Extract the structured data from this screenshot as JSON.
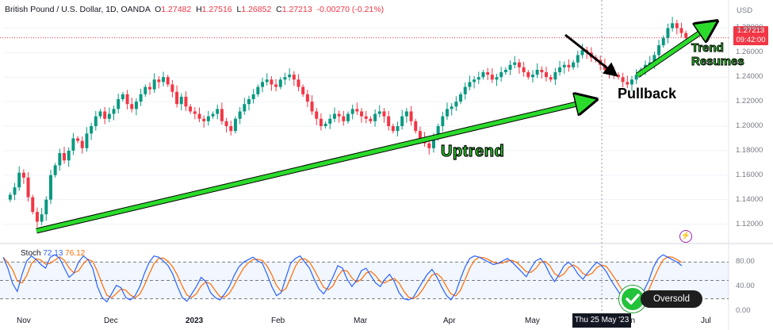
{
  "header": {
    "symbol": "British Pound / U.S. Dollar, 1D, OANDA",
    "open_label": "O",
    "open": "1.27482",
    "high_label": "H",
    "high": "1.27516",
    "low_label": "L",
    "low": "1.26852",
    "close_label": "C",
    "close": "1.27213",
    "change": "-0.00270 (-0.21%)"
  },
  "price_axis": {
    "currency": "USD",
    "last_price": "1.27213",
    "countdown": "09:42:00",
    "ticks": [
      "1.28000",
      "1.26000",
      "1.24000",
      "1.22000",
      "1.20000",
      "1.18000",
      "1.16000",
      "1.14000",
      "1.12000"
    ]
  },
  "stoch": {
    "label": "Stoch",
    "k_value": "72.13",
    "d_value": "76.12",
    "ticks": [
      "80.00",
      "40.00",
      "0.00"
    ]
  },
  "time_axis": {
    "ticks": [
      {
        "label": "Nov",
        "bold": false
      },
      {
        "label": "Dec",
        "bold": false
      },
      {
        "label": "2023",
        "bold": true
      },
      {
        "label": "Feb",
        "bold": false
      },
      {
        "label": "Mar",
        "bold": false
      },
      {
        "label": "Apr",
        "bold": false
      },
      {
        "label": "May",
        "bold": false
      },
      {
        "label": "Jun",
        "bold": false
      },
      {
        "label": "Jul",
        "bold": false
      }
    ],
    "crosshair_date": "Thu 25 May '23"
  },
  "annotations": {
    "uptrend": "Uptrend",
    "pullback": "Pullback",
    "trend_line1": "Trend",
    "trend_line2": "Resumes",
    "oversold": "Oversold"
  },
  "colors": {
    "up": "#089981",
    "down": "#f23645",
    "arrow_green": "#2bdb2b",
    "stoch_k": "#2962ff",
    "stoch_d": "#ff6d00"
  },
  "chart_data": {
    "type": "candlestick",
    "title": "British Pound / U.S. Dollar, 1D, OANDA",
    "ylim": [
      1.11,
      1.29
    ],
    "closes": [
      1.144,
      1.15,
      1.162,
      1.158,
      1.142,
      1.13,
      1.122,
      1.128,
      1.14,
      1.16,
      1.168,
      1.178,
      1.172,
      1.18,
      1.19,
      1.188,
      1.182,
      1.194,
      1.2,
      1.208,
      1.212,
      1.206,
      1.21,
      1.214,
      1.222,
      1.226,
      1.218,
      1.214,
      1.22,
      1.226,
      1.232,
      1.23,
      1.238,
      1.236,
      1.24,
      1.234,
      1.228,
      1.218,
      1.224,
      1.216,
      1.212,
      1.21,
      1.206,
      1.204,
      1.208,
      1.21,
      1.214,
      1.204,
      1.2,
      1.196,
      1.206,
      1.212,
      1.218,
      1.222,
      1.226,
      1.232,
      1.236,
      1.238,
      1.234,
      1.232,
      1.238,
      1.24,
      1.242,
      1.238,
      1.232,
      1.226,
      1.22,
      1.212,
      1.206,
      1.2,
      1.202,
      1.206,
      1.21,
      1.208,
      1.204,
      1.21,
      1.214,
      1.212,
      1.208,
      1.206,
      1.204,
      1.21,
      1.212,
      1.208,
      1.2,
      1.196,
      1.2,
      1.208,
      1.212,
      1.204,
      1.196,
      1.19,
      1.186,
      1.182,
      1.19,
      1.2,
      1.208,
      1.214,
      1.216,
      1.22,
      1.226,
      1.232,
      1.236,
      1.238,
      1.24,
      1.244,
      1.242,
      1.238,
      1.24,
      1.244,
      1.246,
      1.25,
      1.252,
      1.248,
      1.244,
      1.24,
      1.242,
      1.246,
      1.244,
      1.24,
      1.238,
      1.244,
      1.248,
      1.25,
      1.248,
      1.252,
      1.258,
      1.262,
      1.26,
      1.256,
      1.254,
      1.25,
      1.246,
      1.244,
      1.242,
      1.24,
      1.236,
      1.234,
      1.238,
      1.242,
      1.246,
      1.25,
      1.252,
      1.258,
      1.266,
      1.272,
      1.28,
      1.284,
      1.28,
      1.276,
      1.272
    ],
    "stoch_k": [
      88,
      70,
      45,
      32,
      60,
      82,
      90,
      84,
      76,
      70,
      88,
      92,
      86,
      70,
      55,
      62,
      80,
      90,
      84,
      70,
      40,
      22,
      15,
      28,
      42,
      38,
      22,
      18,
      25,
      40,
      62,
      80,
      90,
      88,
      82,
      74,
      60,
      40,
      22,
      16,
      28,
      40,
      55,
      48,
      30,
      22,
      18,
      28,
      40,
      58,
      72,
      80,
      84,
      88,
      82,
      78,
      60,
      40,
      25,
      30,
      55,
      78,
      86,
      90,
      80,
      70,
      52,
      36,
      28,
      40,
      56,
      74,
      70,
      52,
      40,
      50,
      66,
      70,
      58,
      46,
      40,
      52,
      60,
      48,
      30,
      20,
      18,
      22,
      35,
      48,
      60,
      68,
      56,
      40,
      26,
      18,
      30,
      52,
      72,
      86,
      90,
      88,
      84,
      80,
      76,
      78,
      82,
      86,
      80,
      72,
      64,
      56,
      70,
      82,
      86,
      76,
      60,
      48,
      60,
      74,
      80,
      72,
      60,
      52,
      62,
      72,
      80,
      74,
      64,
      50,
      38,
      26,
      18,
      14,
      12,
      20,
      34,
      50,
      72,
      86,
      92,
      88,
      84,
      80,
      74
    ]
  }
}
